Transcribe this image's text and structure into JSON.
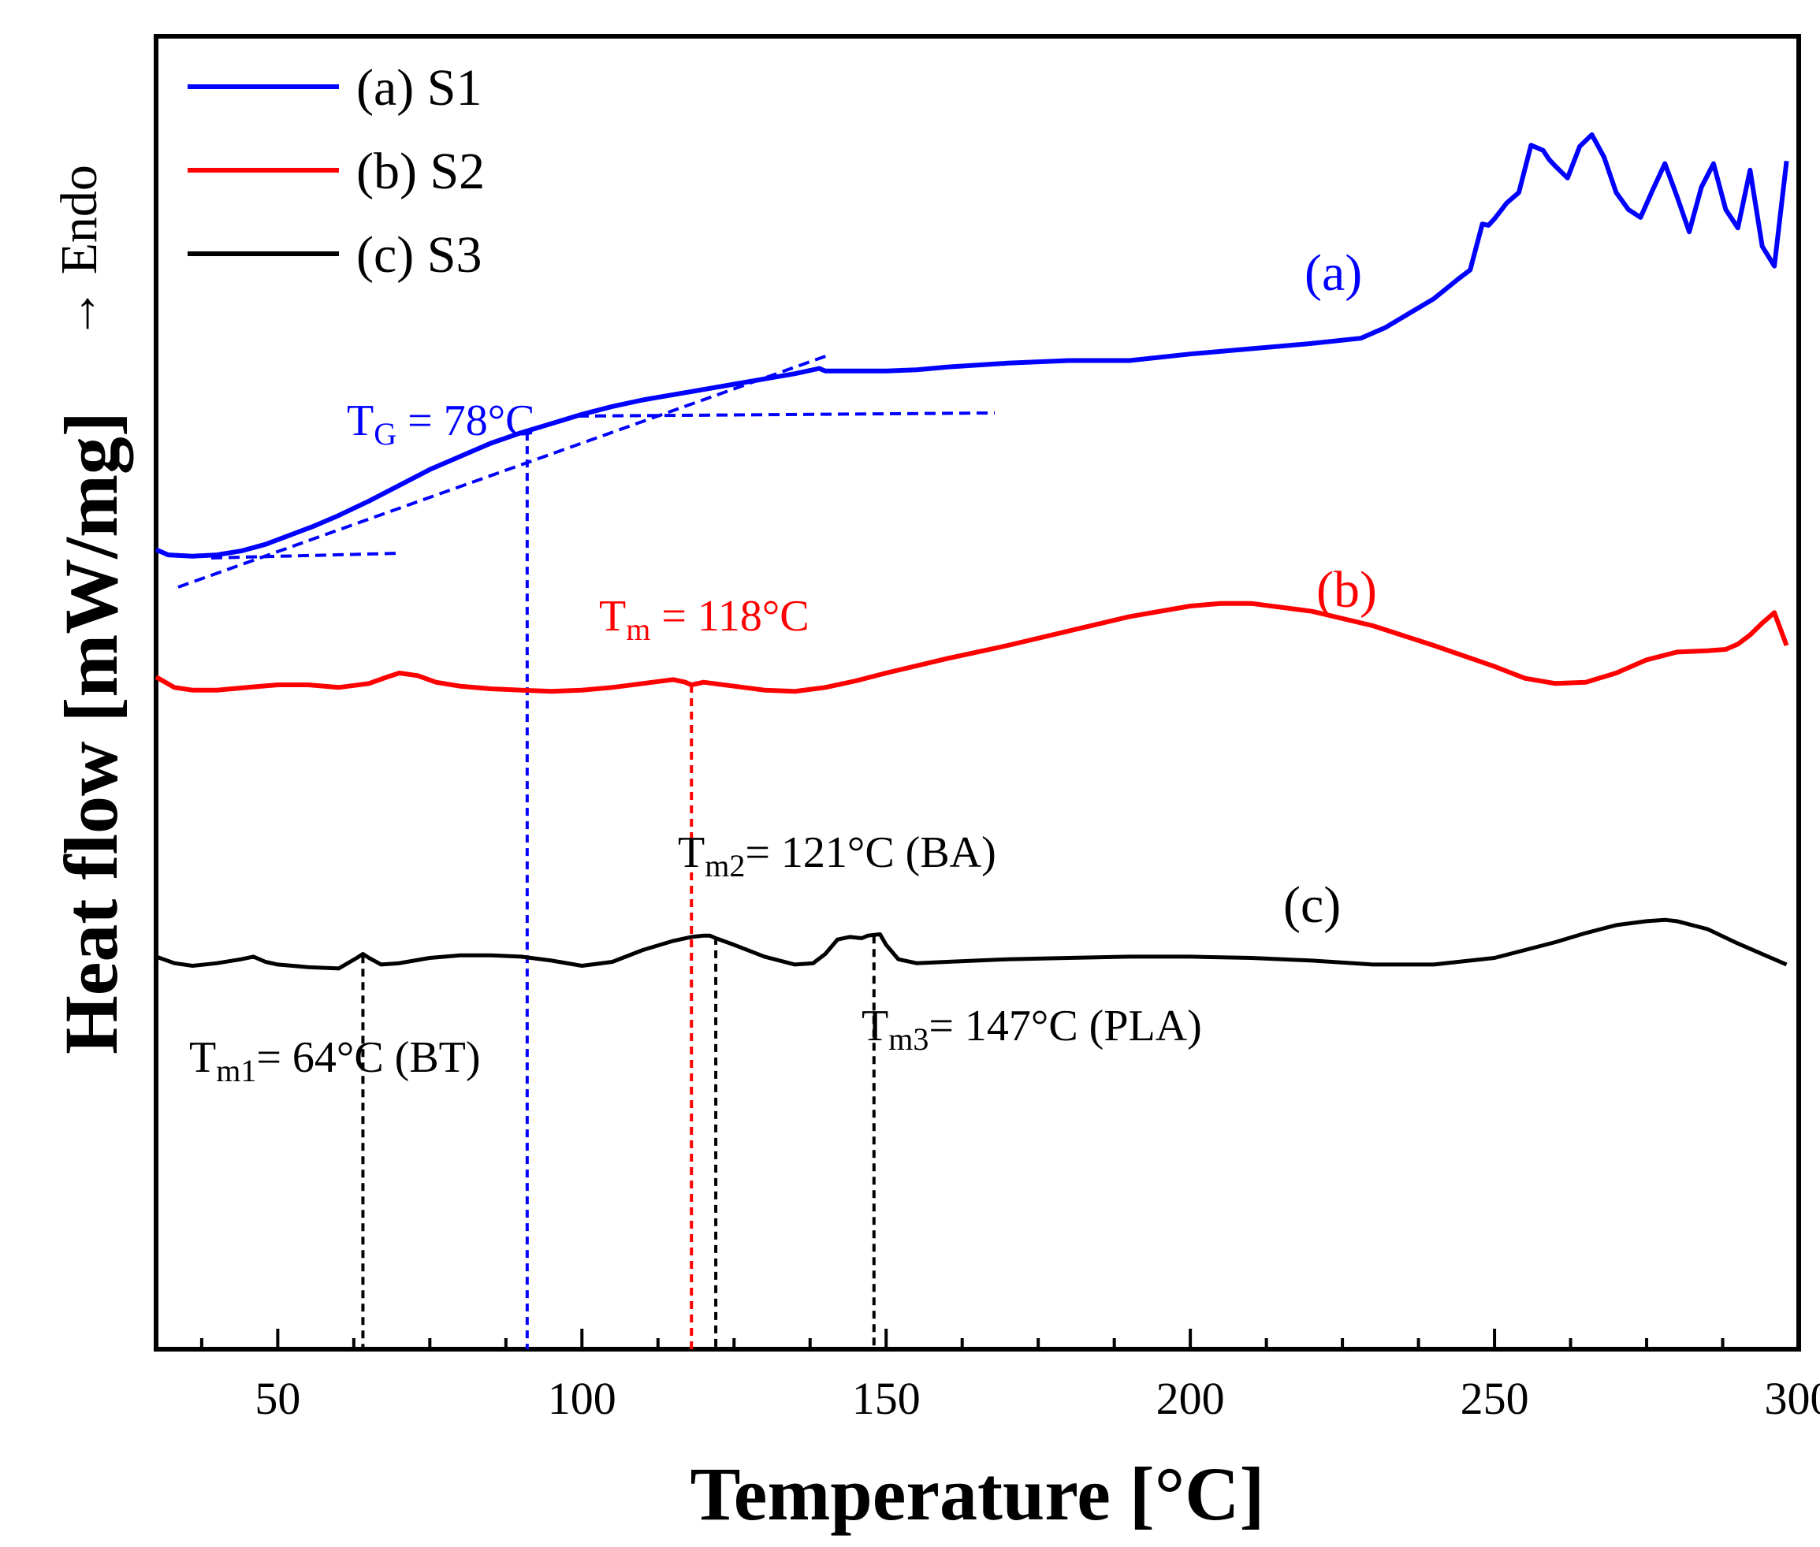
{
  "chart_data": {
    "type": "line",
    "title": "",
    "xlabel": "Temperature [°C]",
    "ylabel": "Heat flow [mW/mg]",
    "ydirection": "→ Endo",
    "xlim": [
      30,
      300
    ],
    "ylim": [
      0,
      100
    ],
    "xticks": [
      50,
      100,
      150,
      200,
      250,
      300
    ],
    "yticks_shown": false,
    "legend_position": "top-left",
    "legend": [
      {
        "label": "(a) S1",
        "color": "#0000ff"
      },
      {
        "label": "(b) S2",
        "color": "#ff0000"
      },
      {
        "label": "(c) S3",
        "color": "#000000"
      }
    ],
    "series": [
      {
        "name": "(a) S1",
        "curve_label": "(a)",
        "color": "#0000ff",
        "x": [
          30,
          32,
          36,
          40,
          44,
          48,
          52,
          56,
          60,
          65,
          70,
          75,
          80,
          85,
          90,
          95,
          100,
          105,
          110,
          115,
          120,
          125,
          130,
          135,
          139,
          140,
          145,
          150,
          155,
          160,
          170,
          180,
          190,
          200,
          210,
          220,
          228,
          232,
          236,
          240,
          244,
          246,
          248,
          249,
          250,
          252,
          254,
          256,
          258,
          259,
          260,
          262,
          264,
          266,
          268,
          270,
          272,
          274,
          276,
          278,
          280,
          282,
          284,
          286,
          288,
          290,
          292,
          294,
          296,
          298
        ],
        "y": [
          60.9,
          60.5,
          60.4,
          60.5,
          60.8,
          61.3,
          62.0,
          62.7,
          63.5,
          64.6,
          65.8,
          67.0,
          68.0,
          69.0,
          69.8,
          70.5,
          71.2,
          71.8,
          72.3,
          72.7,
          73.1,
          73.5,
          73.9,
          74.3,
          74.7,
          74.5,
          74.5,
          74.5,
          74.6,
          74.8,
          75.1,
          75.3,
          75.3,
          75.8,
          76.2,
          76.6,
          77.0,
          77.8,
          78.9,
          80.0,
          81.5,
          82.2,
          85.7,
          85.6,
          86.1,
          87.3,
          88.1,
          91.7,
          91.3,
          90.6,
          90.1,
          89.2,
          91.6,
          92.5,
          90.8,
          88.1,
          86.8,
          86.2,
          88.3,
          90.3,
          87.8,
          85.1,
          88.5,
          90.3,
          86.8,
          85.4,
          89.8,
          84.0,
          82.5,
          90.5
        ]
      },
      {
        "name": "(b) S2",
        "curve_label": "(b)",
        "color": "#ff0000",
        "x": [
          30,
          33,
          36,
          40,
          45,
          50,
          55,
          60,
          65,
          68,
          70,
          73,
          76,
          80,
          85,
          90,
          95,
          100,
          105,
          110,
          115,
          117,
          118,
          120,
          125,
          130,
          135,
          140,
          145,
          150,
          160,
          170,
          180,
          190,
          200,
          205,
          210,
          220,
          230,
          240,
          250,
          255,
          260,
          265,
          270,
          275,
          280,
          285,
          288,
          290,
          292,
          294,
          296,
          298
        ],
        "y": [
          51.2,
          50.4,
          50.2,
          50.2,
          50.4,
          50.6,
          50.6,
          50.4,
          50.7,
          51.2,
          51.5,
          51.3,
          50.8,
          50.5,
          50.3,
          50.2,
          50.1,
          50.2,
          50.4,
          50.7,
          51.0,
          50.8,
          50.6,
          50.8,
          50.5,
          50.2,
          50.1,
          50.4,
          50.9,
          51.5,
          52.6,
          53.6,
          54.7,
          55.8,
          56.6,
          56.8,
          56.8,
          56.2,
          55.1,
          53.6,
          52.0,
          51.1,
          50.7,
          50.8,
          51.5,
          52.5,
          53.1,
          53.2,
          53.3,
          53.7,
          54.4,
          55.3,
          56.1,
          53.6
        ]
      },
      {
        "name": "(c) S3",
        "curve_label": "(c)",
        "color": "#000000",
        "x": [
          30,
          33,
          36,
          40,
          44,
          46,
          48,
          50,
          55,
          60,
          63,
          64,
          65,
          67,
          70,
          75,
          80,
          85,
          90,
          95,
          100,
          105,
          110,
          115,
          118,
          120,
          121,
          122,
          125,
          130,
          135,
          138,
          140,
          142,
          144,
          146,
          147,
          149,
          150,
          152,
          155,
          160,
          170,
          180,
          190,
          200,
          210,
          220,
          230,
          240,
          250,
          255,
          260,
          265,
          270,
          275,
          278,
          280,
          285,
          290,
          295,
          298
        ],
        "y": [
          29.9,
          29.4,
          29.2,
          29.4,
          29.7,
          29.9,
          29.5,
          29.3,
          29.1,
          29.0,
          29.8,
          30.1,
          29.8,
          29.3,
          29.4,
          29.8,
          30.0,
          30.0,
          29.9,
          29.6,
          29.2,
          29.5,
          30.4,
          31.1,
          31.4,
          31.5,
          31.5,
          31.3,
          30.8,
          29.9,
          29.3,
          29.4,
          30.1,
          31.2,
          31.4,
          31.3,
          31.5,
          31.6,
          30.8,
          29.7,
          29.4,
          29.5,
          29.7,
          29.8,
          29.9,
          29.9,
          29.8,
          29.6,
          29.3,
          29.3,
          29.8,
          30.4,
          31.0,
          31.7,
          32.3,
          32.6,
          32.7,
          32.6,
          32.0,
          30.9,
          29.9,
          29.3
        ]
      }
    ],
    "annotations": {
      "tg": {
        "sub": "G",
        "value": " = 78°C",
        "color": "#0000ff",
        "drop_x": 91
      },
      "tm": {
        "sub": "m",
        "value": " = 118°C",
        "color": "#ff0000",
        "drop_x": 118
      },
      "tm1": {
        "sub": "m1",
        "value": "= 64°C (BT)",
        "color": "#000000",
        "drop_x": 64
      },
      "tm2": {
        "sub": "m2",
        "value": "= 121°C (BA)",
        "color": "#000000",
        "drop_x": 122
      },
      "tm3": {
        "sub": "m3",
        "value": "= 147°C (PLA)",
        "color": "#000000",
        "drop_x": 148
      }
    }
  }
}
